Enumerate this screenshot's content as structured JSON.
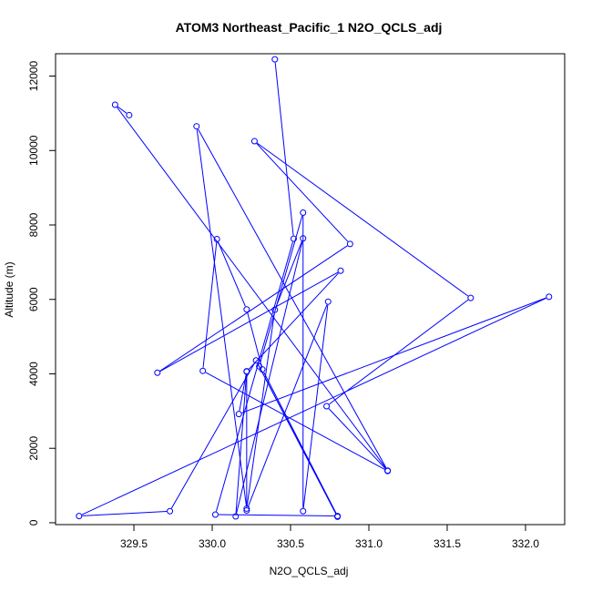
{
  "chart_data": {
    "type": "line",
    "title": "ATOM3 Northeast_Pacific_1 N2O_QCLS_adj",
    "xlabel": "N2O_QCLS_adj",
    "ylabel": "Altitude (m)",
    "xlim": [
      329.0,
      332.25
    ],
    "ylim": [
      -50,
      12600
    ],
    "xticks": [
      329.5,
      330.0,
      330.5,
      331.0,
      331.5,
      332.0
    ],
    "xtick_labels": [
      "329.5",
      "330.0",
      "330.5",
      "331.0",
      "331.5",
      "332.0"
    ],
    "yticks": [
      0,
      2000,
      4000,
      6000,
      8000,
      10000,
      12000
    ],
    "ytick_labels": [
      "0",
      "2000",
      "4000",
      "6000",
      "8000",
      "10000",
      "12000"
    ],
    "series_color": "#0000ff",
    "series": [
      {
        "name": "",
        "points": [
          [
            330.4,
            12450
          ],
          [
            330.52,
            7630
          ],
          [
            330.02,
            220
          ],
          [
            330.8,
            180
          ],
          [
            330.32,
            4120
          ],
          [
            330.22,
            5730
          ],
          [
            330.03,
            7620
          ],
          [
            329.94,
            4080
          ],
          [
            331.12,
            1390
          ],
          [
            330.73,
            3130
          ],
          [
            331.65,
            6040
          ],
          [
            330.27,
            10250
          ],
          [
            330.88,
            7490
          ],
          [
            329.65,
            4030
          ],
          [
            330.82,
            6770
          ],
          [
            330.22,
            4060
          ],
          [
            330.22,
            330
          ],
          [
            330.74,
            5940
          ],
          [
            330.58,
            310
          ],
          [
            330.58,
            8330
          ],
          [
            330.3,
            4200
          ],
          [
            330.8,
            160
          ],
          [
            330.28,
            4360
          ],
          [
            329.73,
            310
          ],
          [
            329.15,
            180
          ],
          [
            332.15,
            6070
          ],
          [
            330.17,
            2920
          ],
          [
            330.22,
            4070
          ],
          [
            330.15,
            170
          ],
          [
            330.58,
            7640
          ],
          [
            330.4,
            5720
          ],
          [
            330.22,
            380
          ],
          [
            329.9,
            10650
          ],
          [
            331.12,
            1400
          ],
          [
            329.38,
            11230
          ],
          [
            329.47,
            10950
          ]
        ]
      }
    ]
  }
}
